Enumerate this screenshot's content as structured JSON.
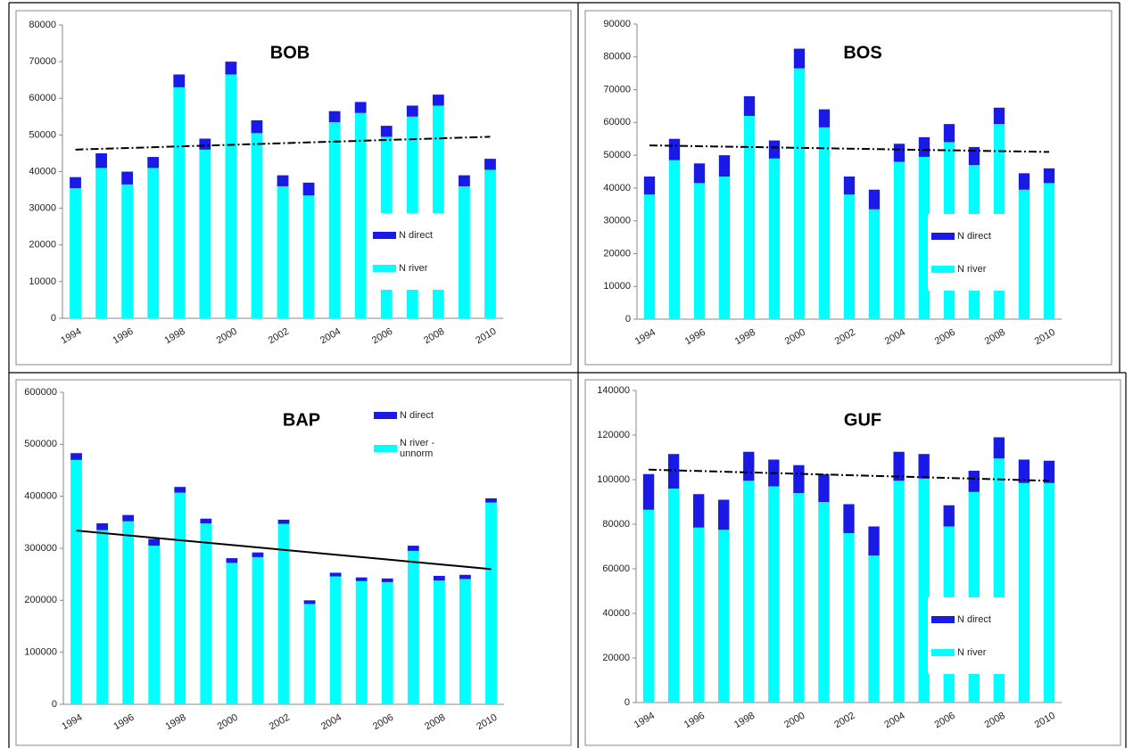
{
  "chart_data": [
    {
      "type": "bar",
      "title": "BOB",
      "categories": [
        "1994",
        null,
        "1996",
        null,
        "1998",
        null,
        "2000",
        null,
        "2002",
        null,
        "2004",
        null,
        "2006",
        null,
        "2008",
        null,
        "2010"
      ],
      "series": [
        {
          "name": "N direct",
          "color": "#1a1ae6",
          "values": [
            3000,
            4000,
            3500,
            3000,
            3500,
            3000,
            3500,
            3500,
            3000,
            3500,
            3000,
            3000,
            3000,
            3000,
            3000,
            3000,
            3000
          ]
        },
        {
          "name": "N river",
          "color": "#00ffff",
          "values": [
            35500,
            41000,
            36500,
            41000,
            63000,
            46000,
            66500,
            50500,
            36000,
            33500,
            53500,
            56000,
            49500,
            55000,
            58000,
            36000,
            40500
          ]
        }
      ],
      "trend": {
        "values": [
          46000,
          49500
        ],
        "style": "dashdot"
      },
      "ylim": [
        0,
        80000
      ],
      "yticks": [
        0,
        10000,
        20000,
        30000,
        40000,
        50000,
        60000,
        70000,
        80000
      ],
      "grid": false,
      "legend": "lower right"
    },
    {
      "type": "bar",
      "title": "BOS",
      "categories": [
        "1994",
        null,
        "1996",
        null,
        "1998",
        null,
        "2000",
        null,
        "2002",
        null,
        "2004",
        null,
        "2006",
        null,
        "2008",
        null,
        "2010"
      ],
      "series": [
        {
          "name": "N direct",
          "color": "#1a1ae6",
          "values": [
            5500,
            6500,
            6000,
            6500,
            6000,
            5500,
            6000,
            5500,
            5500,
            6000,
            5500,
            6000,
            5500,
            5500,
            5000,
            5000,
            4500
          ]
        },
        {
          "name": "N river",
          "color": "#00ffff",
          "values": [
            38000,
            48500,
            41500,
            43500,
            62000,
            49000,
            76500,
            58500,
            38000,
            33500,
            48000,
            49500,
            54000,
            47000,
            59500,
            39500,
            41500
          ]
        }
      ],
      "trend": {
        "values": [
          53000,
          51000
        ],
        "style": "dashdot"
      },
      "ylim": [
        0,
        90000
      ],
      "yticks": [
        0,
        10000,
        20000,
        30000,
        40000,
        50000,
        60000,
        70000,
        80000,
        90000
      ],
      "grid": false,
      "legend": "lower right"
    },
    {
      "type": "bar",
      "title": "BAP",
      "categories": [
        "1994",
        null,
        "1996",
        null,
        "1998",
        null,
        "2000",
        null,
        "2002",
        null,
        "2004",
        null,
        "2006",
        null,
        "2008",
        null,
        "2010"
      ],
      "series": [
        {
          "name": "N direct",
          "color": "#1a1ae6",
          "values": [
            13000,
            13000,
            12000,
            13000,
            11000,
            9000,
            9000,
            9000,
            8000,
            7000,
            7000,
            7000,
            7000,
            10000,
            9000,
            8000,
            8000
          ]
        },
        {
          "name": "N river - unnorm",
          "color": "#00ffff",
          "values": [
            470000,
            335000,
            352000,
            305000,
            407000,
            348000,
            272000,
            283000,
            347000,
            193000,
            246000,
            237000,
            235000,
            295000,
            238000,
            241000,
            388000
          ]
        }
      ],
      "trend": {
        "values": [
          334000,
          260000
        ],
        "style": "solid"
      },
      "ylim": [
        0,
        600000
      ],
      "yticks": [
        0,
        100000,
        200000,
        300000,
        400000,
        500000,
        600000
      ],
      "grid": false,
      "legend": "upper right"
    },
    {
      "type": "bar",
      "title": "GUF",
      "categories": [
        "1994",
        null,
        "1996",
        null,
        "1998",
        null,
        "2000",
        null,
        "2002",
        null,
        "2004",
        null,
        "2006",
        null,
        "2008",
        null,
        "2010"
      ],
      "series": [
        {
          "name": "N direct",
          "color": "#1a1ae6",
          "values": [
            16000,
            15500,
            15000,
            13500,
            13000,
            12000,
            12500,
            12500,
            13000,
            13000,
            13000,
            11000,
            9500,
            9500,
            9500,
            10500,
            10000
          ]
        },
        {
          "name": "N river",
          "color": "#00ffff",
          "values": [
            86500,
            96000,
            78500,
            77500,
            99500,
            97000,
            94000,
            90000,
            76000,
            66000,
            99500,
            100500,
            79000,
            94500,
            109500,
            98500,
            98500
          ]
        }
      ],
      "trend": {
        "values": [
          104500,
          99500
        ],
        "style": "dashdot"
      },
      "ylim": [
        0,
        140000
      ],
      "yticks": [
        0,
        20000,
        40000,
        60000,
        80000,
        100000,
        120000,
        140000
      ],
      "grid": false,
      "legend": "lower right"
    }
  ]
}
